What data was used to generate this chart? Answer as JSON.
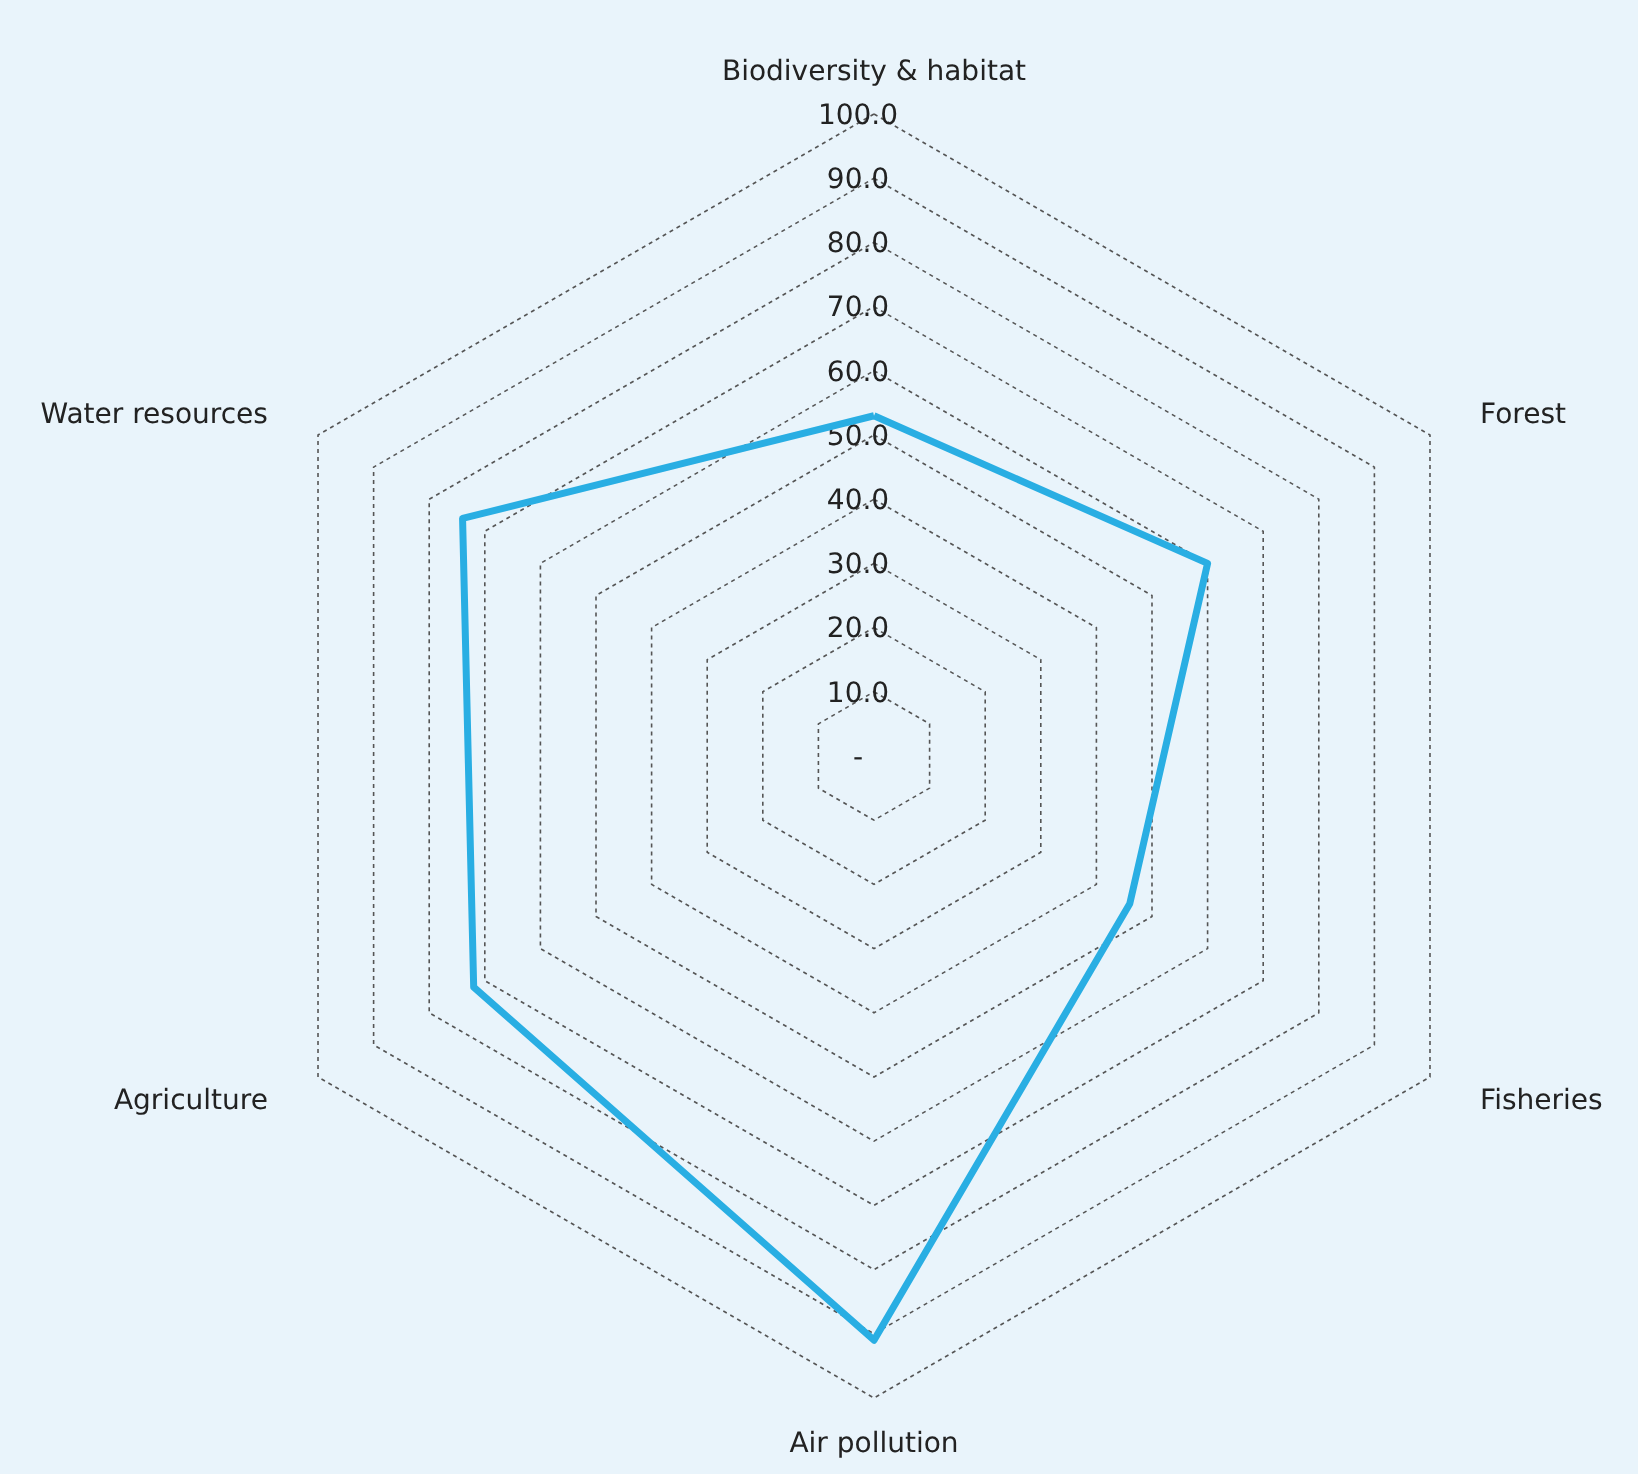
{
  "chart_data": {
    "type": "radar",
    "categories": [
      "Biodiversity & habitat",
      "Forest",
      "Fisheries",
      "Air pollution",
      "Agriculture",
      "Water resources"
    ],
    "series": [
      {
        "color": "#29aee3",
        "values": [
          53,
          60,
          46,
          91,
          72,
          74
        ]
      }
    ],
    "ylim": [
      0,
      100
    ],
    "yticks": [
      {
        "value": 0,
        "label": "-"
      },
      {
        "value": 10,
        "label": "10.0"
      },
      {
        "value": 20,
        "label": "20.0"
      },
      {
        "value": 30,
        "label": "30.0"
      },
      {
        "value": 40,
        "label": "40.0"
      },
      {
        "value": 50,
        "label": "50.0"
      },
      {
        "value": 60,
        "label": "60.0"
      },
      {
        "value": 70,
        "label": "70.0"
      },
      {
        "value": 80,
        "label": "80.0"
      },
      {
        "value": 90,
        "label": "90.0"
      },
      {
        "value": 100,
        "label": "100.0"
      }
    ],
    "grid": true,
    "marker": "none",
    "line_style": "solid"
  }
}
